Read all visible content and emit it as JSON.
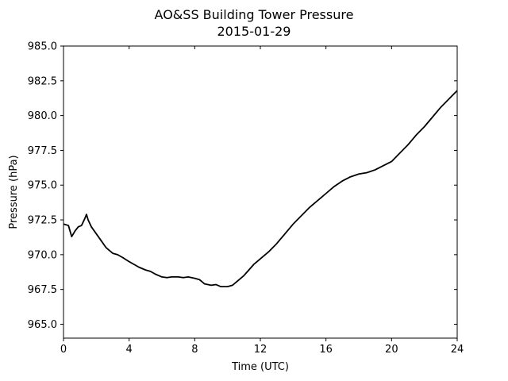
{
  "chart_data": {
    "type": "line",
    "title": "AO&SS Building Tower Pressure",
    "subtitle": "2015-01-29",
    "xlabel": "Time (UTC)",
    "ylabel": "Pressure (hPa)",
    "xlim": [
      0,
      24
    ],
    "ylim": [
      964.0,
      985.0
    ],
    "xticks": [
      0,
      4,
      8,
      12,
      16,
      20,
      24
    ],
    "xtick_labels": [
      "0",
      "4",
      "8",
      "12",
      "16",
      "20",
      "24"
    ],
    "yticks": [
      965.0,
      967.5,
      970.0,
      972.5,
      975.0,
      977.5,
      980.0,
      982.5,
      985.0
    ],
    "ytick_labels": [
      "965.0",
      "967.5",
      "970.0",
      "972.5",
      "975.0",
      "977.5",
      "980.0",
      "982.5",
      "985.0"
    ],
    "grid": false,
    "line_color": "#000000",
    "series": [
      {
        "x": [
          0,
          0.3,
          0.5,
          0.7,
          0.9,
          1.1,
          1.3,
          1.4,
          1.5,
          1.7,
          2.0,
          2.3,
          2.6,
          3.0,
          3.3,
          3.6,
          4.0,
          4.3,
          4.6,
          5.0,
          5.3,
          5.6,
          6.0,
          6.3,
          6.6,
          7.0,
          7.3,
          7.6,
          8.0,
          8.3,
          8.6,
          9.0,
          9.3,
          9.6,
          10.0,
          10.3,
          10.6,
          11.0,
          11.3,
          11.6,
          12.0,
          12.5,
          13.0,
          13.5,
          14.0,
          14.5,
          15.0,
          15.5,
          16.0,
          16.5,
          17.0,
          17.5,
          18.0,
          18.5,
          19.0,
          19.5,
          20.0,
          20.5,
          21.0,
          21.5,
          22.0,
          22.5,
          23.0,
          23.5,
          24.0
        ],
        "y": [
          972.2,
          972.1,
          971.3,
          971.7,
          972.0,
          972.1,
          972.6,
          972.9,
          972.5,
          972.0,
          971.5,
          971.0,
          970.5,
          970.1,
          970.0,
          969.8,
          969.5,
          969.3,
          969.1,
          968.9,
          968.8,
          968.6,
          968.4,
          968.35,
          968.4,
          968.4,
          968.35,
          968.4,
          968.3,
          968.2,
          967.9,
          967.8,
          967.85,
          967.7,
          967.7,
          967.8,
          968.1,
          968.5,
          968.9,
          969.3,
          969.7,
          970.2,
          970.8,
          971.5,
          972.2,
          972.8,
          973.4,
          973.9,
          974.4,
          974.9,
          975.3,
          975.6,
          975.8,
          975.9,
          976.1,
          976.4,
          976.7,
          977.3,
          977.9,
          978.6,
          979.2,
          979.9,
          980.6,
          981.2,
          981.8
        ]
      }
    ]
  }
}
